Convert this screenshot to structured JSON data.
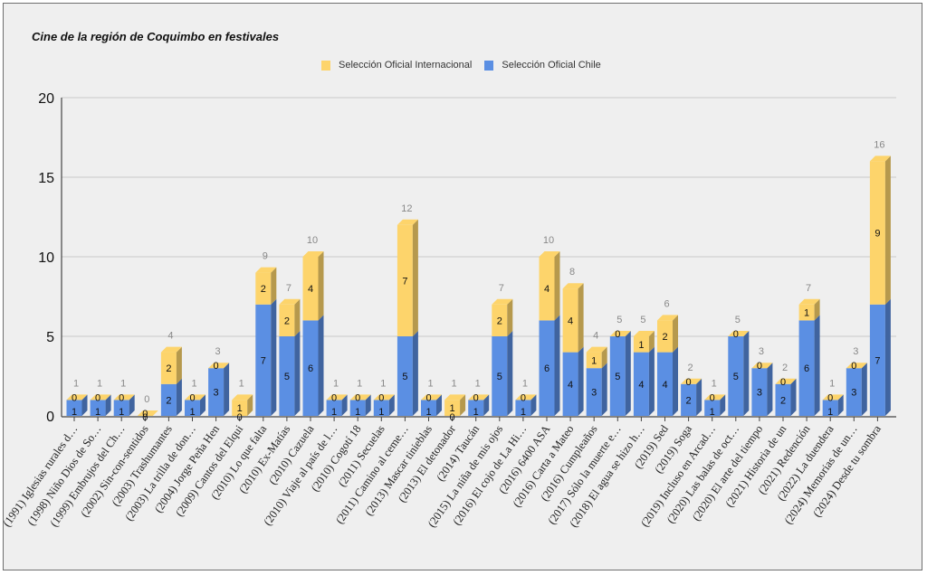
{
  "chart_data": {
    "type": "bar",
    "stacked": true,
    "three_d": true,
    "title": "Cine de la región de Coquimbo en festivales",
    "xlabel": "",
    "ylabel": "",
    "ylim": [
      0,
      20
    ],
    "yticks": [
      0,
      5,
      10,
      15,
      20
    ],
    "grid": true,
    "legend_position": "top",
    "categories": [
      "(1991) Iglesias rurales d…",
      "(1998) Niño Dios de So…",
      "(1999) Embrujos del Ch…",
      "(2002) Sin-con-sentidos",
      "(2003) Trashumantes",
      "(2003) La trilla de don…",
      "(2004) Jorge Peña Hen",
      "(2009) Cantos del Elqui",
      "(2010) Lo que falta",
      "(2010) Ex-Matías",
      "(2010) Cazuela",
      "(2010) Viaje al país de l…",
      "(2010) Cogotí 18",
      "(2011) Secuelas",
      "(2011) Camino al ceme…",
      "(2013) Mascar tinieblas",
      "(2013) El detonador",
      "(2014) Taucán",
      "(2015) La niña de mis ojos",
      "(2016) El cojo de La Hi…",
      "(2016) 6400 ASA",
      "(2016) Carta a Mateo",
      "(2016) Cumpleaños",
      "(2017) Sólo la muerte e…",
      "(2018) El agua se hizo h…",
      "(2019) Sed",
      "(2019) Soga",
      "(2019) Incluso en Arcad…",
      "(2020) Las balas de oct…",
      "(2020) El arte del tiempo",
      "(2021) Historia de un",
      "(2021) Redención",
      "(2022) La duendera",
      "(2024) Memorias de un…",
      "(2024) Desde tu sombra"
    ],
    "series": [
      {
        "name": "Selección Oficial Chile",
        "color": "#5b8fe3",
        "values": [
          1,
          1,
          1,
          0,
          2,
          1,
          3,
          0,
          7,
          5,
          6,
          1,
          1,
          1,
          5,
          1,
          0,
          1,
          5,
          1,
          6,
          4,
          3,
          5,
          4,
          4,
          2,
          1,
          5,
          3,
          2,
          6,
          1,
          3,
          7
        ]
      },
      {
        "name": "Selección Oficial Internacional",
        "color": "#fdd46b",
        "values": [
          0,
          0,
          0,
          0,
          2,
          0,
          0,
          1,
          2,
          2,
          4,
          0,
          0,
          0,
          7,
          0,
          1,
          0,
          2,
          0,
          4,
          4,
          1,
          0,
          1,
          2,
          0,
          0,
          0,
          0,
          0,
          1,
          0,
          0,
          9
        ]
      }
    ],
    "totals": [
      1,
      1,
      1,
      0,
      4,
      1,
      3,
      1,
      9,
      7,
      10,
      1,
      1,
      1,
      12,
      1,
      1,
      1,
      7,
      1,
      10,
      8,
      4,
      5,
      5,
      6,
      2,
      1,
      5,
      3,
      2,
      7,
      1,
      3,
      16
    ]
  },
  "legend": {
    "items": [
      {
        "label": "Selección Oficial Internacional",
        "color": "#fdd46b"
      },
      {
        "label": "Selección Oficial Chile",
        "color": "#5b8fe3"
      }
    ]
  }
}
